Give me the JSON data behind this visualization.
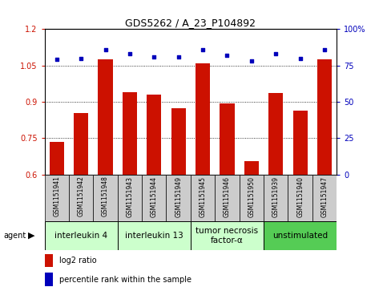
{
  "title": "GDS5262 / A_23_P104892",
  "samples": [
    "GSM1151941",
    "GSM1151942",
    "GSM1151948",
    "GSM1151943",
    "GSM1151944",
    "GSM1151949",
    "GSM1151945",
    "GSM1151946",
    "GSM1151950",
    "GSM1151939",
    "GSM1151940",
    "GSM1151947"
  ],
  "log2_ratio": [
    0.735,
    0.855,
    1.075,
    0.94,
    0.93,
    0.875,
    1.06,
    0.895,
    0.655,
    0.935,
    0.865,
    1.075
  ],
  "percentile_rank": [
    79,
    80,
    86,
    83,
    81,
    81,
    86,
    82,
    78,
    83,
    80,
    86
  ],
  "bar_color": "#cc1100",
  "dot_color": "#0000bb",
  "ylim_left": [
    0.6,
    1.2
  ],
  "ylim_right": [
    0,
    100
  ],
  "yticks_left": [
    0.6,
    0.75,
    0.9,
    1.05,
    1.2
  ],
  "yticks_right": [
    0,
    25,
    50,
    75,
    100
  ],
  "ytick_labels_left": [
    "0.6",
    "0.75",
    "0.9",
    "1.05",
    "1.2"
  ],
  "ytick_labels_right": [
    "0",
    "25",
    "50",
    "75",
    "100%"
  ],
  "hlines": [
    0.75,
    0.9,
    1.05
  ],
  "groups": [
    {
      "label": "interleukin 4",
      "start": 0,
      "end": 3,
      "color": "#ccffcc"
    },
    {
      "label": "interleukin 13",
      "start": 3,
      "end": 6,
      "color": "#ccffcc"
    },
    {
      "label": "tumor necrosis\nfactor-α",
      "start": 6,
      "end": 9,
      "color": "#ccffcc"
    },
    {
      "label": "unstimulated",
      "start": 9,
      "end": 12,
      "color": "#55cc55"
    }
  ],
  "agent_label": "agent",
  "legend_bar_label": "log2 ratio",
  "legend_dot_label": "percentile rank within the sample",
  "bar_color_legend": "#cc1100",
  "dot_color_legend": "#0000bb",
  "tick_label_color_left": "#cc1100",
  "tick_label_color_right": "#0000bb",
  "bar_width": 0.6,
  "title_fontsize": 9,
  "tick_fontsize": 7,
  "xtick_fontsize": 5.5,
  "legend_fontsize": 7,
  "group_label_fontsize": 7.5,
  "xticklabel_bg": "#cccccc"
}
